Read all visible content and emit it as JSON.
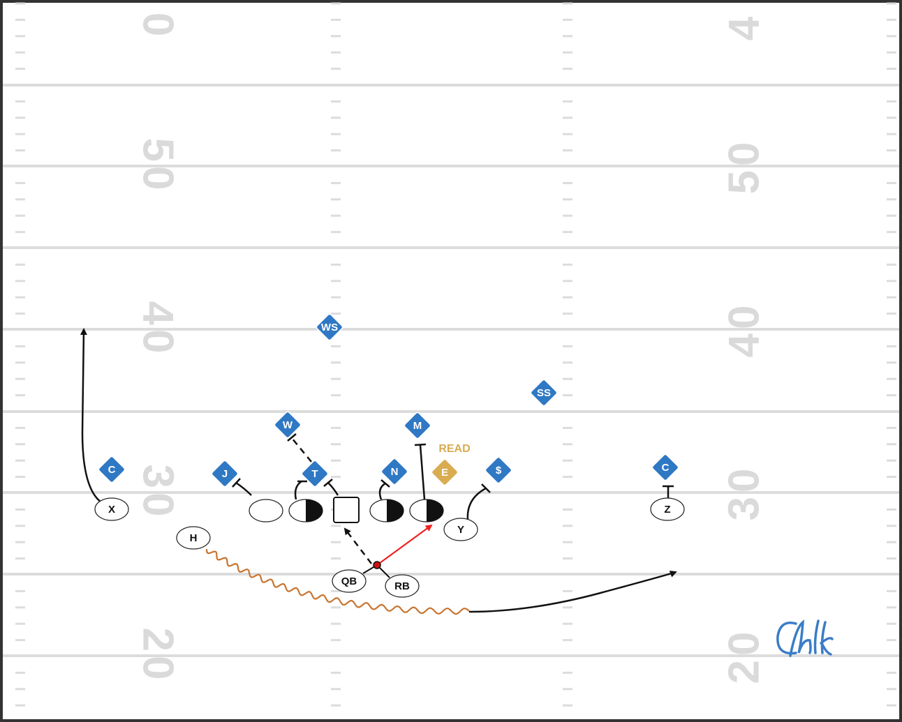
{
  "yard_numbers": {
    "left": [
      "0",
      "50",
      "40",
      "30",
      "20"
    ],
    "right": [
      "4",
      "50",
      "40",
      "30",
      "20"
    ]
  },
  "offense": {
    "X": "X",
    "H": "H",
    "Y": "Y",
    "Z": "Z",
    "QB": "QB",
    "RB": "RB"
  },
  "defense": {
    "WS": "WS",
    "SS": "SS",
    "W": "W",
    "M": "M",
    "J": "J",
    "T": "T",
    "N": "N",
    "E": "E",
    "dollar": "$",
    "C_left": "C",
    "C_right": "C"
  },
  "annotation": "READ"
}
